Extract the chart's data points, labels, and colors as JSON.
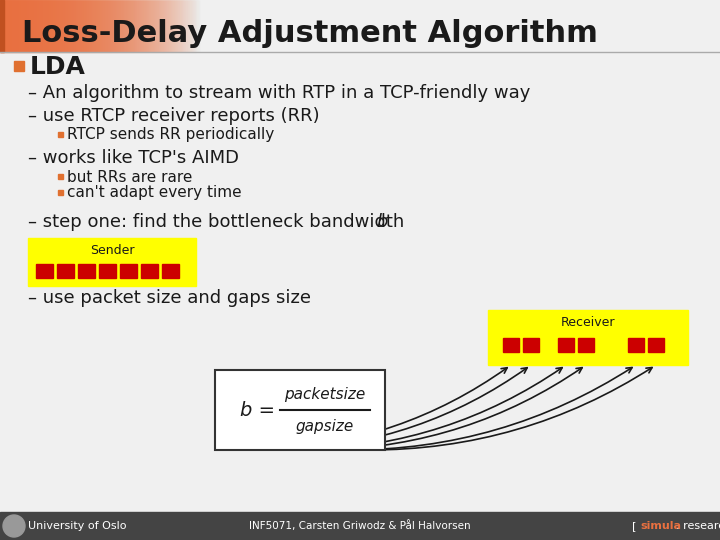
{
  "title": "Loss-Delay Adjustment Algorithm",
  "title_fontsize": 22,
  "title_color": "#1a1a1a",
  "title_bar_color": "#e87040",
  "bg_color": "#f0f0f0",
  "bullet_color": "#e07030",
  "text_color": "#1a1a1a",
  "section_header": "LDA",
  "section_fontsize": 18,
  "dash_fontsize": 13,
  "sub_fontsize": 11,
  "dash_items": [
    "An algorithm to stream with RTP in a TCP-friendly way",
    "use RTCP receiver reports (RR)",
    "works like TCP's AIMD",
    "step one: find the bottleneck bandwidth ",
    "use packet size and gaps size"
  ],
  "sub_bullets_1": [
    "RTCP sends RR periodically"
  ],
  "sub_bullets_2": [
    "but RRs are rare",
    "can't adapt every time"
  ],
  "sender_label": "Sender",
  "receiver_label": "Receiver",
  "yellow_fill": "#ffff00",
  "red_packet": "#cc0000",
  "footer_left": "University of Oslo",
  "footer_center": "INF5071, Carsten Griwodz & Pål Halvorsen",
  "footer_color": "#444444",
  "simula_color": "#e87040"
}
